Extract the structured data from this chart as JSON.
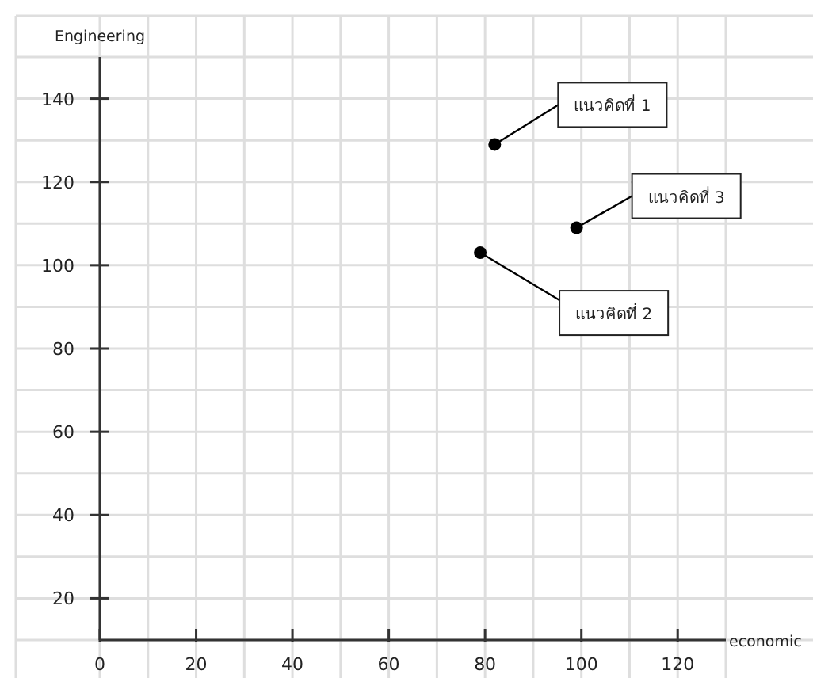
{
  "chart_data": {
    "type": "scatter",
    "xlabel": "economic",
    "ylabel": "Engineering",
    "x": [
      82,
      79,
      99
    ],
    "series": [
      {
        "color": "#000000",
        "values": [
          129,
          103,
          109
        ]
      }
    ],
    "marker": "circle",
    "grid": true,
    "xlim": [
      0,
      130
    ],
    "ylim": [
      10,
      150
    ],
    "xticks": [
      0,
      20,
      40,
      60,
      80,
      100,
      120
    ],
    "yticks": [
      20,
      40,
      60,
      80,
      100,
      120,
      140
    ],
    "annotations": [
      {
        "text": "แนวคิดที่ 1",
        "x": 82,
        "y": 129
      },
      {
        "text": "แนวคิดที่ 2",
        "x": 79,
        "y": 103
      },
      {
        "text": "แนวคิดที่ 3",
        "x": 99,
        "y": 109
      }
    ]
  }
}
